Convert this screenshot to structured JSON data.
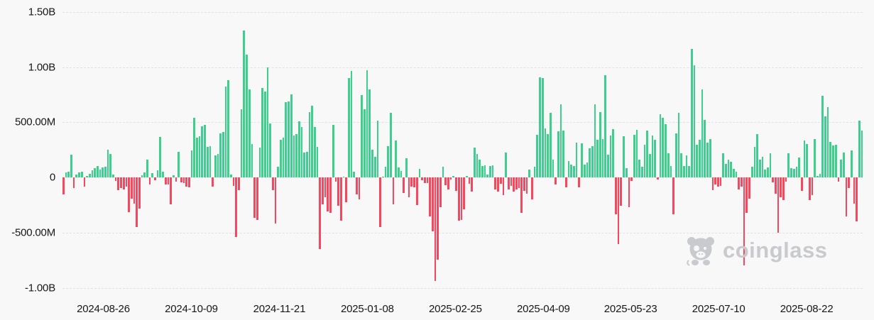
{
  "chart_data": {
    "type": "bar",
    "title": "",
    "description": "Daily net flows bar chart (green = inflow, red = outflow), values in USD",
    "ylabel": "",
    "xlabel": "",
    "grid": true,
    "legend": "none",
    "y_axis": {
      "ymax_millions": 1500,
      "ymin_millions": -1124,
      "ticks": [
        {
          "label": "1.50B",
          "value_millions": 1500
        },
        {
          "label": "1.00B",
          "value_millions": 1000
        },
        {
          "label": "500.00M",
          "value_millions": 500
        },
        {
          "label": "0",
          "value_millions": 0
        },
        {
          "label": "-500.00M",
          "value_millions": -500
        },
        {
          "label": "-1.00B",
          "value_millions": -1000
        }
      ]
    },
    "x_labels": [
      {
        "label": "2024-08-26",
        "pos_pct": 5.1
      },
      {
        "label": "2024-10-09",
        "pos_pct": 16.1
      },
      {
        "label": "2024-11-21",
        "pos_pct": 27.1
      },
      {
        "label": "2025-01-08",
        "pos_pct": 38.1
      },
      {
        "label": "2025-02-25",
        "pos_pct": 49.1
      },
      {
        "label": "2025-04-09",
        "pos_pct": 60.1
      },
      {
        "label": "2025-05-23",
        "pos_pct": 71.0
      },
      {
        "label": "2025-07-10",
        "pos_pct": 82.0
      },
      {
        "label": "2025-08-22",
        "pos_pct": 93.0
      }
    ],
    "values_millions": [
      -150,
      45,
      50,
      205,
      -95,
      30,
      45,
      55,
      -80,
      15,
      35,
      65,
      85,
      105,
      70,
      90,
      100,
      255,
      215,
      25,
      -30,
      -115,
      -95,
      -105,
      -85,
      -315,
      -190,
      -235,
      -450,
      -280,
      20,
      45,
      160,
      -65,
      40,
      -25,
      65,
      365,
      55,
      -60,
      -65,
      -240,
      20,
      -35,
      235,
      -45,
      -50,
      -80,
      -90,
      245,
      540,
      360,
      372,
      462,
      478,
      277,
      287,
      -85,
      202,
      212,
      400,
      410,
      823,
      883,
      30,
      -75,
      -537,
      -117,
      622,
      1335,
      1113,
      798,
      302,
      -362,
      -385,
      270,
      810,
      777,
      1000,
      490,
      -117,
      -415,
      95,
      340,
      362,
      681,
      692,
      756,
      383,
      394,
      511,
      458,
      224,
      234,
      596,
      649,
      458,
      277,
      -650,
      -245,
      -181,
      -309,
      -320,
      479,
      -40,
      -256,
      -394,
      10,
      -224,
      901,
      969,
      53,
      -150,
      -200,
      750,
      618,
      970,
      800,
      250,
      187,
      518,
      -447,
      10,
      96,
      283,
      585,
      -240,
      334,
      89,
      57,
      -138,
      177,
      -181,
      -79,
      -89,
      -249,
      79,
      -26,
      -53,
      -49,
      -351,
      -490,
      -937,
      -745,
      -266,
      100,
      -70,
      -107,
      -21,
      15,
      -121,
      -394,
      -383,
      -287,
      15,
      -55,
      -130,
      272,
      215,
      164,
      105,
      110,
      30,
      105,
      110,
      -105,
      -130,
      -55,
      -160,
      225,
      -105,
      -75,
      -130,
      -110,
      -95,
      -320,
      -120,
      -145,
      75,
      -200,
      100,
      390,
      908,
      900,
      447,
      394,
      589,
      160,
      -60,
      420,
      666,
      425,
      -90,
      149,
      117,
      106,
      319,
      -90,
      313,
      117,
      138,
      266,
      287,
      666,
      340,
      596,
      351,
      930,
      206,
      383,
      436,
      -330,
      -606,
      -255,
      377,
      85,
      -270,
      -30,
      389,
      430,
      160,
      96,
      298,
      426,
      213,
      383,
      340,
      -20,
      575,
      543,
      483,
      223,
      106,
      -330,
      398,
      589,
      223,
      106,
      202,
      106,
      1164,
      1015,
      298,
      340,
      798,
      521,
      319,
      351,
      -117,
      -64,
      -85,
      -75,
      223,
      121,
      160,
      143,
      79,
      53,
      -106,
      -85,
      -798,
      -320,
      -192,
      96,
      277,
      394,
      164,
      185,
      74,
      91,
      223,
      -45,
      -149,
      -500,
      -181,
      -202,
      -40,
      219,
      85,
      79,
      96,
      181,
      -121,
      334,
      304,
      -202,
      -160,
      351,
      15,
      32,
      738,
      553,
      638,
      320,
      288,
      300,
      -40,
      160,
      225,
      -351,
      -96,
      245,
      -235,
      -400,
      517,
      427
    ],
    "colors": {
      "positive": "#3CCF8E",
      "negative": "#F5475E",
      "background": "#F8F8F9",
      "gridline": "#E2E2E6",
      "axis_text": "#17171A",
      "watermark": "#C9CACD"
    }
  },
  "watermark": {
    "text": "coinglass",
    "icon": "coinglass-bear-icon"
  }
}
